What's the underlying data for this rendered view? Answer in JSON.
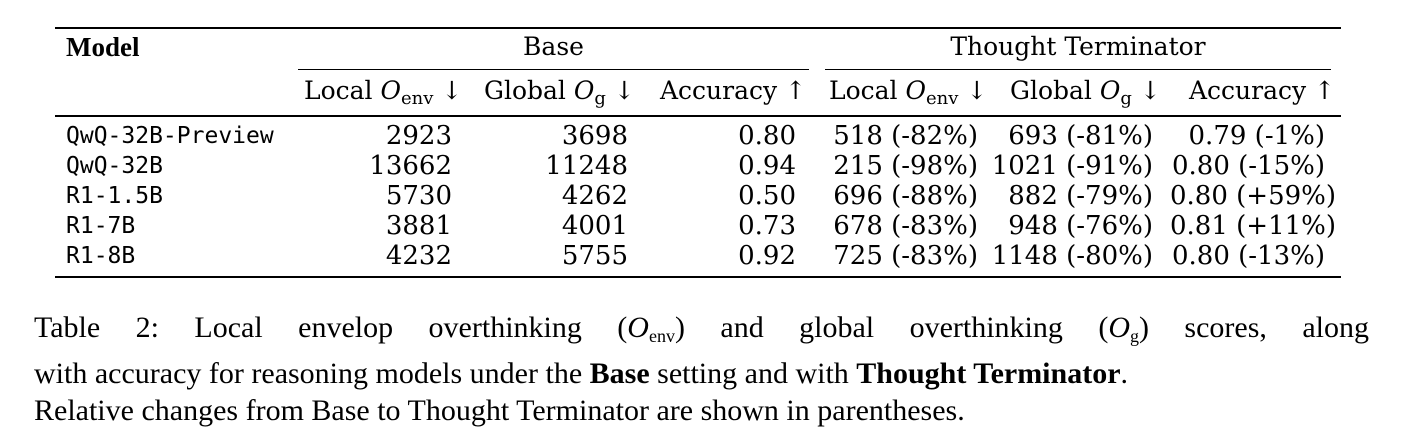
{
  "table": {
    "group_headers": {
      "model": "Model",
      "base": "Base",
      "thought_terminator": "Thought Terminator"
    },
    "subheaders": {
      "local_prefix": "Local ",
      "local_symbol": "O",
      "local_sub": "env",
      "global_prefix": "Global ",
      "global_symbol": "O",
      "global_sub": "g",
      "accuracy": "Accuracy",
      "down_arrow": "↓",
      "up_arrow": "↑"
    },
    "rows": [
      {
        "model": "QwQ-32B-Preview",
        "base_local": "2923",
        "base_global": "3698",
        "base_acc": "0.80",
        "tt_local": "518 (-82%)",
        "tt_global": "693 (-81%)",
        "tt_acc": "0.79 (-1%)"
      },
      {
        "model": "QwQ-32B",
        "base_local": "13662",
        "base_global": "11248",
        "base_acc": "0.94",
        "tt_local": "215 (-98%)",
        "tt_global": "1021 (-91%)",
        "tt_acc": "0.80 (-15%)"
      },
      {
        "model": "R1-1.5B",
        "base_local": "5730",
        "base_global": "4262",
        "base_acc": "0.50",
        "tt_local": "696 (-88%)",
        "tt_global": "882 (-79%)",
        "tt_acc": "0.80 (+59%)"
      },
      {
        "model": "R1-7B",
        "base_local": "3881",
        "base_global": "4001",
        "base_acc": "0.73",
        "tt_local": "678 (-83%)",
        "tt_global": "948 (-76%)",
        "tt_acc": "0.81 (+11%)"
      },
      {
        "model": "R1-8B",
        "base_local": "4232",
        "base_global": "5755",
        "base_acc": "0.92",
        "tt_local": "725 (-83%)",
        "tt_global": "1148 (-80%)",
        "tt_acc": "0.80 (-13%)"
      }
    ]
  },
  "caption": {
    "line1_a": "Table 2: Local envelop overthinking (",
    "line1_sym1": "O",
    "line1_sub1": "env",
    "line1_b": ") and global overthinking (",
    "line1_sym2": "O",
    "line1_sub2": "g",
    "line1_c": ") scores, along",
    "line2_a": "with accuracy for reasoning models under the ",
    "line2_bold1": "Base",
    "line2_b": " setting and with ",
    "line2_bold2": "Thought Terminator",
    "line2_c": ".",
    "line3": "Relative changes from Base to Thought Terminator are shown in parentheses."
  }
}
